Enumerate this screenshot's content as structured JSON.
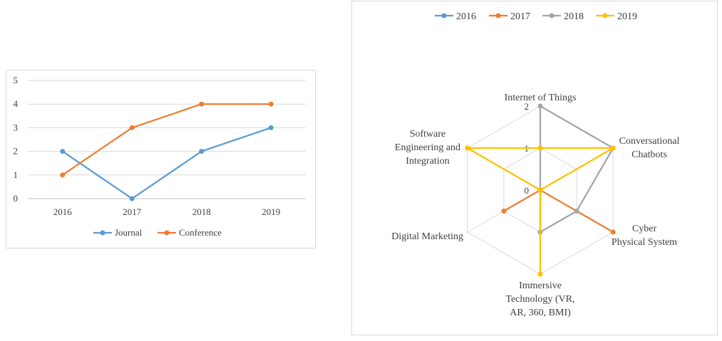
{
  "chart_data": [
    {
      "type": "line",
      "categories": [
        "2016",
        "2017",
        "2018",
        "2019"
      ],
      "series": [
        {
          "name": "Journal",
          "values": [
            2,
            0,
            2,
            3
          ],
          "color": "#5b9bd5"
        },
        {
          "name": "Conference",
          "values": [
            1,
            3,
            4,
            4
          ],
          "color": "#ed7d31"
        }
      ],
      "yticks": [
        "0",
        "1",
        "2",
        "3",
        "4",
        "5"
      ],
      "ylim": [
        0,
        5
      ],
      "grid": true,
      "legend": "bottom"
    },
    {
      "type": "radar",
      "axes": [
        "Internet of Things",
        "Conversational Chatbots",
        "Cyber Physical System",
        "Immersive Technology (VR, AR, 360, BMI)",
        "Digital Marketing",
        "Software Engineering and Integration"
      ],
      "series": [
        {
          "name": "2016",
          "values": [
            0,
            0,
            0,
            0,
            0,
            0
          ],
          "color": "#5b9bd5"
        },
        {
          "name": "2017",
          "values": [
            0,
            0,
            2,
            0,
            1,
            0
          ],
          "color": "#ed7d31"
        },
        {
          "name": "2018",
          "values": [
            2,
            2,
            1,
            1,
            0,
            0
          ],
          "color": "#a5a5a5"
        },
        {
          "name": "2019",
          "values": [
            1,
            2,
            0,
            2,
            0,
            2
          ],
          "color": "#ffc000"
        }
      ],
      "rticks": [
        "0",
        "1",
        "2"
      ],
      "rlim": [
        0,
        2
      ],
      "grid": true,
      "legend": "top"
    }
  ]
}
